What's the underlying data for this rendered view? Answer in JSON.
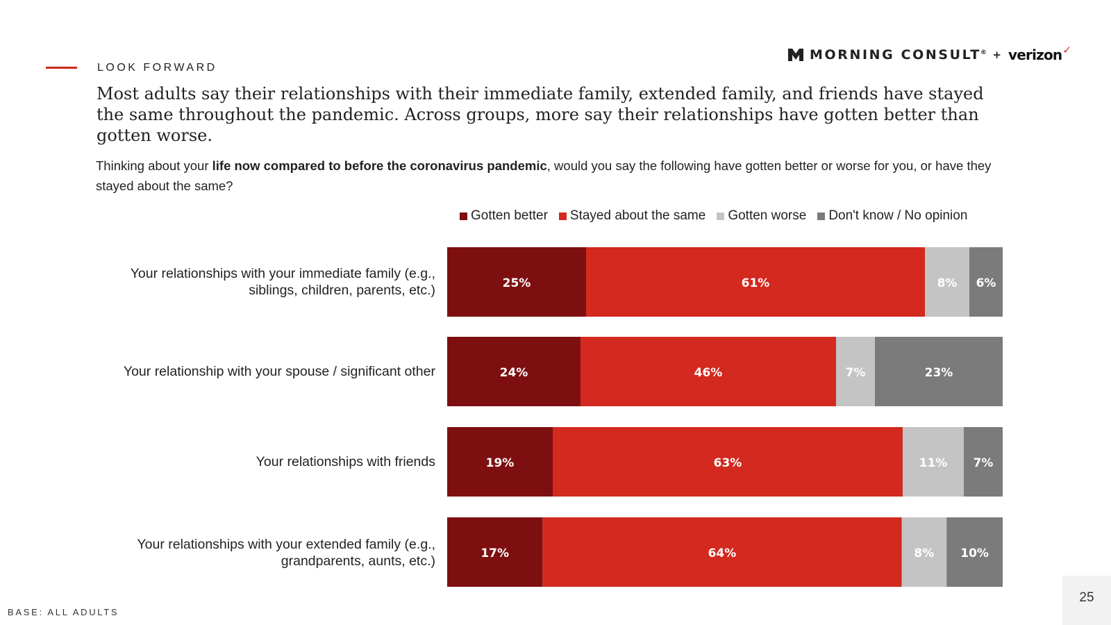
{
  "header": {
    "section_label": "LOOK FORWARD",
    "headline": "Most adults say their relationships with their immediate family, extended family, and friends have stayed the same throughout the pandemic. Across groups, more say their relationships have gotten better than gotten worse.",
    "question_prefix": "Thinking about your ",
    "question_bold": "life now compared to before the coronavirus pandemic",
    "question_suffix": ", would you say the following have gotten better or worse for you, or have they stayed about the same?"
  },
  "logo": {
    "brand": "MORNING CONSULT",
    "registered": "®",
    "plus": "+",
    "partner": "verizon",
    "check": "✓"
  },
  "colors": {
    "better": "#7e0f11",
    "same": "#d3291f",
    "worse": "#c4c4c4",
    "dont_know": "#7b7b7b",
    "accent": "#d0281e"
  },
  "chart_data": {
    "type": "bar",
    "orientation": "horizontal",
    "stacked": true,
    "legend_position": "top",
    "categories": [
      "Your relationships with your immediate family (e.g., siblings, children, parents, etc.)",
      "Your relationship with your spouse / significant other",
      "Your relationships with friends",
      "Your relationships with your extended family (e.g., grandparents, aunts, etc.)"
    ],
    "series": [
      {
        "name": "Gotten better",
        "color": "#7e0f11",
        "values": [
          25,
          24,
          19,
          17
        ]
      },
      {
        "name": "Stayed about the same",
        "color": "#d3291f",
        "values": [
          61,
          46,
          63,
          64
        ]
      },
      {
        "name": "Gotten worse",
        "color": "#c4c4c4",
        "values": [
          8,
          7,
          11,
          8
        ]
      },
      {
        "name": "Don't know / No opinion",
        "color": "#7b7b7b",
        "values": [
          6,
          23,
          7,
          10
        ]
      }
    ],
    "xlim": [
      0,
      100
    ],
    "unit": "%"
  },
  "rows": [
    {
      "label_line1": "Your relationships with your immediate family (e.g.,",
      "label_line2": "siblings, children, parents, etc.)"
    },
    {
      "label_line1": "Your relationship with your spouse / significant other",
      "label_line2": ""
    },
    {
      "label_line1": "Your relationships with friends",
      "label_line2": ""
    },
    {
      "label_line1": "Your relationships with your extended family (e.g.,",
      "label_line2": "grandparents, aunts, etc.)"
    }
  ],
  "footer": {
    "base_note": "BASE: ALL ADULTS",
    "page_number": "25"
  }
}
